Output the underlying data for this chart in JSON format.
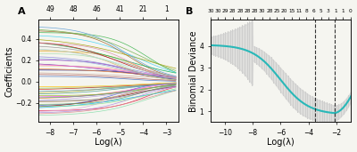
{
  "panel_A": {
    "label": "A",
    "xlabel": "Log(λ)",
    "ylabel": "Coefficients",
    "xlim": [
      -8.5,
      -2.5
    ],
    "ylim": [
      -0.38,
      0.58
    ],
    "xticks": [
      -8,
      -7,
      -6,
      -5,
      -4,
      -3
    ],
    "yticks": [
      -0.2,
      0.0,
      0.2,
      0.4
    ],
    "top_ticks": [
      "49",
      "48",
      "46",
      "41",
      "21",
      "1"
    ],
    "top_tick_positions": [
      -8,
      -7,
      -6,
      -5,
      -4,
      -3
    ],
    "n_lines": 49,
    "x_start": -8.5,
    "x_end": -2.6
  },
  "panel_B": {
    "label": "B",
    "xlabel": "Log(λ)",
    "ylabel": "Binomial Deviance",
    "xlim": [
      -11,
      -1
    ],
    "ylim": [
      0.5,
      5.2
    ],
    "xticks": [
      -10,
      -8,
      -6,
      -4,
      -2
    ],
    "yticks": [
      1,
      2,
      3,
      4
    ],
    "top_ticks": [
      "30",
      "30",
      "29",
      "28",
      "28",
      "28",
      "28",
      "30",
      "28",
      "25",
      "20",
      "15",
      "11",
      "8",
      "6",
      "5",
      "3",
      "1",
      "1",
      "0"
    ],
    "vline1": -3.5,
    "vline2": -2.1,
    "curve_color": "#29b8b8",
    "band_color": "#c8c8c8"
  },
  "bg_color": "#f5f5f0",
  "tick_label_size": 5.5,
  "label_size": 7,
  "axis_label_fontsize": 7
}
